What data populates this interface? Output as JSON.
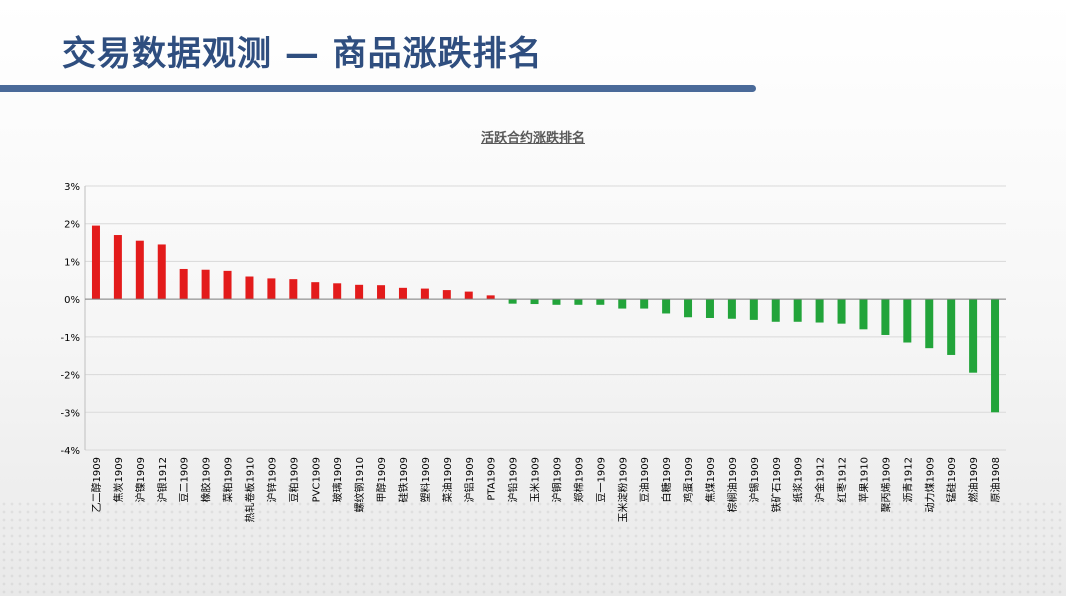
{
  "slide": {
    "title": "交易数据观测 — 商品涨跌排名"
  },
  "colors": {
    "up": "#e31b1b",
    "down": "#22a43a",
    "title": "#2f4e7f",
    "axis_text": "#000000",
    "grid": "#d9d9d9"
  },
  "chart_data": {
    "type": "bar",
    "title": "活跃合约涨跌排名",
    "xlabel": "",
    "ylabel": "",
    "ylim": [
      -4,
      3
    ],
    "yticks": [
      3,
      2,
      1,
      0,
      -1,
      -2,
      -3,
      -4
    ],
    "ytick_labels": [
      "3%",
      "2%",
      "1%",
      "0%",
      "-1%",
      "-2%",
      "-3%",
      "-4%"
    ],
    "grid": true,
    "categories": [
      "乙二醇1909",
      "焦炭1909",
      "沪镍1909",
      "沪银1912",
      "豆二1909",
      "橡胶1909",
      "菜粕1909",
      "热轧卷板1910",
      "沪锌1909",
      "豆粕1909",
      "PVC1909",
      "玻璃1909",
      "螺纹钢1910",
      "甲醇1909",
      "硅铁1909",
      "塑料1909",
      "菜油1909",
      "沪铝1909",
      "PTA1909",
      "沪铅1909",
      "玉米1909",
      "沪铜1909",
      "郑棉1909",
      "豆一1909",
      "玉米淀粉1909",
      "豆油1909",
      "白糖1909",
      "鸡蛋1909",
      "焦煤1909",
      "棕榈油1909",
      "沪锡1909",
      "铁矿石1909",
      "纸浆1909",
      "沪金1912",
      "红枣1912",
      "苹果1910",
      "聚丙烯1909",
      "沥青1912",
      "动力煤1909",
      "锰硅1909",
      "燃油1909",
      "原油1908"
    ],
    "values": [
      1.95,
      1.7,
      1.55,
      1.45,
      0.8,
      0.78,
      0.75,
      0.6,
      0.55,
      0.53,
      0.45,
      0.42,
      0.38,
      0.37,
      0.3,
      0.28,
      0.24,
      0.2,
      0.1,
      -0.12,
      -0.13,
      -0.15,
      -0.15,
      -0.15,
      -0.25,
      -0.25,
      -0.38,
      -0.48,
      -0.5,
      -0.52,
      -0.55,
      -0.6,
      -0.6,
      -0.62,
      -0.65,
      -0.8,
      -0.95,
      -1.15,
      -1.3,
      -1.48,
      -1.95,
      -3.0
    ]
  }
}
